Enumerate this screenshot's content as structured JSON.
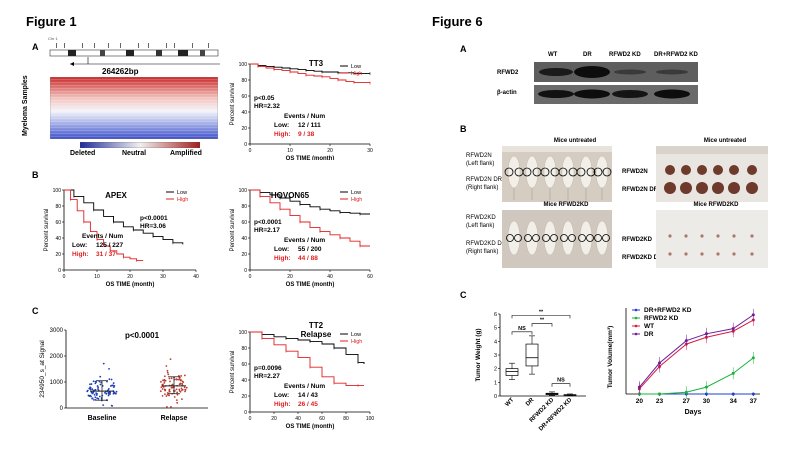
{
  "figure1": {
    "title": "Figure 1",
    "panel_a": {
      "letter": "A",
      "chr_label": "Chr 1",
      "region_size": "264262bp",
      "y_label": "Myeloma Samples",
      "colorbar": {
        "deleted": "Deleted",
        "neutral": "Neutral",
        "amplified": "Amplified"
      }
    },
    "panel_b": {
      "letter": "B"
    },
    "panel_c": {
      "letter": "C"
    }
  },
  "figure6": {
    "title": "Figure 6",
    "panel_a": {
      "letter": "A",
      "columns": [
        "WT",
        "DR",
        "RFWD2 KD",
        "DR+RFWD2 KD"
      ],
      "rows": [
        "RFWD2",
        "β-actin"
      ]
    },
    "panel_b": {
      "letter": "B",
      "top_left_title": "Mice untreated",
      "top_right_title": "Mice untreated",
      "bottom_left_title": "Mice RFWD2KD",
      "bottom_right_title": "Mice RFWD2KD",
      "label_n_left": "RFWD2N",
      "label_n_left_sub": "(Left flank)",
      "label_n_dr": "RFWD2N DR",
      "label_n_dr_sub": "(Right flank)",
      "label_kd_left": "RFWD2KD",
      "label_kd_left_sub": "(Left flank)",
      "label_kd_dr": "RFWD2KD DR",
      "label_kd_dr_sub": "(Right flank)",
      "right_n": "RFWD2N",
      "right_n_dr": "RFWD2N DR",
      "right_kd": "RFWD2KD",
      "right_kd_dr": "RFWD2KD DR"
    },
    "panel_c": {
      "letter": "C"
    }
  },
  "colors": {
    "low": "#000000",
    "high": "#e02020"
  },
  "chart_data": [
    {
      "id": "tt3",
      "type": "line",
      "title": "TT3",
      "xlabel": "OS TIME (month)",
      "ylabel": "Percent survival",
      "xlim": [
        0,
        30
      ],
      "ylim": [
        0,
        100
      ],
      "xticks": [
        "0",
        "10",
        "20",
        "30"
      ],
      "yticks": [
        "0",
        "20",
        "40",
        "60",
        "80",
        "100"
      ],
      "legend": [
        "Low",
        "High"
      ],
      "stats": [
        "p<0.05",
        "HR=2.32"
      ],
      "events_header": "Events / Num",
      "low_label": "Low:",
      "low_val": "12 / 111",
      "high_label": "High:",
      "high_val": "9 / 38",
      "series": [
        {
          "name": "Low",
          "x": [
            0,
            2,
            4,
            6,
            8,
            10,
            12,
            14,
            16,
            18,
            20,
            22,
            24,
            26,
            28,
            30
          ],
          "y": [
            100,
            98,
            97,
            96,
            95,
            94,
            93,
            92,
            91,
            90,
            90,
            89,
            89,
            88,
            88,
            88
          ]
        },
        {
          "name": "High",
          "x": [
            0,
            2,
            4,
            6,
            8,
            10,
            12,
            14,
            16,
            18,
            20,
            22,
            24,
            26,
            28,
            30
          ],
          "y": [
            100,
            97,
            95,
            93,
            92,
            90,
            88,
            86,
            85,
            84,
            82,
            80,
            78,
            77,
            77,
            76
          ]
        }
      ]
    },
    {
      "id": "apex",
      "type": "line",
      "title": "APEX",
      "xlabel": "OS TIME (month)",
      "ylabel": "Percent survival",
      "xlim": [
        0,
        40
      ],
      "ylim": [
        0,
        100
      ],
      "xticks": [
        "0",
        "10",
        "20",
        "30",
        "40"
      ],
      "yticks": [
        "0",
        "20",
        "40",
        "60",
        "80",
        "100"
      ],
      "legend": [
        "Low",
        "High"
      ],
      "stats": [
        "p<0.0001",
        "HR=3.06"
      ],
      "events_header": "Events / Num",
      "low_label": "Low:",
      "low_val": "125 / 227",
      "high_label": "High:",
      "high_val": "31 / 37",
      "series": [
        {
          "name": "Low",
          "x": [
            0,
            3,
            6,
            9,
            12,
            15,
            18,
            21,
            24,
            27,
            30,
            33,
            36
          ],
          "y": [
            100,
            92,
            84,
            75,
            67,
            60,
            54,
            50,
            46,
            42,
            38,
            34,
            32
          ]
        },
        {
          "name": "High",
          "x": [
            0,
            2,
            4,
            6,
            8,
            10,
            12,
            14,
            16,
            18,
            20,
            22,
            24
          ],
          "y": [
            100,
            88,
            74,
            60,
            48,
            38,
            30,
            24,
            20,
            16,
            14,
            12,
            12
          ]
        }
      ]
    },
    {
      "id": "hovon65",
      "type": "line",
      "title": "HOVON65",
      "xlabel": "OS TIME (month)",
      "ylabel": "Percent survival",
      "xlim": [
        0,
        60
      ],
      "ylim": [
        0,
        100
      ],
      "xticks": [
        "0",
        "20",
        "40",
        "60"
      ],
      "yticks": [
        "0",
        "20",
        "40",
        "60",
        "80",
        "100"
      ],
      "legend": [
        "Low",
        "High"
      ],
      "stats": [
        "p<0.0001",
        "HR=2.17"
      ],
      "events_header": "Events / Num",
      "low_label": "Low:",
      "low_val": "55 / 200",
      "high_label": "High:",
      "high_val": "44 / 88",
      "series": [
        {
          "name": "Low",
          "x": [
            0,
            5,
            10,
            15,
            20,
            25,
            30,
            35,
            40,
            45,
            50,
            55,
            60
          ],
          "y": [
            100,
            97,
            94,
            90,
            86,
            82,
            79,
            76,
            74,
            72,
            71,
            70,
            70
          ]
        },
        {
          "name": "High",
          "x": [
            0,
            5,
            10,
            15,
            20,
            25,
            30,
            35,
            40,
            45,
            50,
            55,
            60
          ],
          "y": [
            100,
            92,
            84,
            76,
            68,
            60,
            53,
            48,
            44,
            40,
            36,
            30,
            30
          ]
        }
      ]
    },
    {
      "id": "scatter_c",
      "type": "scatter",
      "ylabel": "234950_s_at Signal",
      "categories": [
        "Baseline",
        "Relapse"
      ],
      "annotation": "p<0.0001",
      "ylim": [
        0,
        3000
      ],
      "yticks": [
        "0",
        "1000",
        "2000",
        "3000"
      ],
      "series": [
        {
          "name": "Baseline",
          "mean": 650,
          "sd_low": 300,
          "sd_high": 1050
        },
        {
          "name": "Relapse",
          "mean": 850,
          "sd_low": 550,
          "sd_high": 1200
        }
      ]
    },
    {
      "id": "tt2",
      "type": "line",
      "title": "TT2",
      "subtitle": "Relapse",
      "xlabel": "OS TIME (month)",
      "ylabel": "Percent survival",
      "xlim": [
        0,
        100
      ],
      "ylim": [
        0,
        100
      ],
      "xticks": [
        "0",
        "20",
        "40",
        "60",
        "80",
        "100"
      ],
      "yticks": [
        "0",
        "20",
        "40",
        "60",
        "80",
        "100"
      ],
      "legend": [
        "Low",
        "High"
      ],
      "stats": [
        "p=0.0096",
        "HR=2.27"
      ],
      "events_header": "Events / Num",
      "low_label": "Low:",
      "low_val": "14 / 43",
      "high_label": "High:",
      "high_val": "26 / 45",
      "series": [
        {
          "name": "Low",
          "x": [
            0,
            10,
            20,
            30,
            40,
            50,
            60,
            70,
            80,
            90,
            95
          ],
          "y": [
            100,
            97,
            94,
            92,
            90,
            88,
            85,
            80,
            72,
            62,
            60
          ]
        },
        {
          "name": "High",
          "x": [
            0,
            10,
            20,
            30,
            40,
            50,
            60,
            70,
            80,
            90,
            95
          ],
          "y": [
            100,
            92,
            84,
            76,
            68,
            56,
            44,
            36,
            33,
            33,
            33
          ]
        }
      ]
    },
    {
      "id": "box_weight",
      "type": "bar",
      "ylabel": "Tumor Weight (g)",
      "categories": [
        "WT",
        "DR",
        "RFWD2 KD",
        "DR+RFWD2 KD"
      ],
      "ylim": [
        0,
        6
      ],
      "yticks": [
        "0",
        "1",
        "2",
        "3",
        "4",
        "5",
        "6"
      ],
      "significance": [
        "NS",
        "**",
        "**",
        "NS"
      ],
      "series": [
        {
          "name": "WT",
          "min": 1.2,
          "q1": 1.5,
          "median": 1.8,
          "q3": 2.0,
          "max": 2.4
        },
        {
          "name": "DR",
          "min": 1.6,
          "q1": 2.2,
          "median": 2.8,
          "q3": 3.8,
          "max": 4.4
        },
        {
          "name": "RFWD2 KD",
          "min": 0.05,
          "q1": 0.1,
          "median": 0.15,
          "q3": 0.2,
          "max": 0.3
        },
        {
          "name": "DR+RFWD2 KD",
          "min": 0.02,
          "q1": 0.05,
          "median": 0.08,
          "q3": 0.1,
          "max": 0.15
        }
      ]
    },
    {
      "id": "tumor_volume",
      "type": "line",
      "xlabel": "Days",
      "ylabel": "Tumor Volume(mm³)",
      "x": [
        20,
        23,
        27,
        30,
        34,
        37
      ],
      "xticks": [
        "20",
        "23",
        "27",
        "30",
        "34",
        "37"
      ],
      "ylim": [
        0,
        1000
      ],
      "legend": [
        "DR+RFWD2 KD",
        "RFWD2 KD",
        "WT",
        "DR"
      ],
      "series": [
        {
          "name": "DR+RFWD2 KD",
          "color": "#1f3fd6",
          "y": [
            0,
            0,
            0,
            0,
            0,
            0
          ]
        },
        {
          "name": "RFWD2 KD",
          "color": "#19b33a",
          "y": [
            0,
            0,
            20,
            80,
            240,
            420
          ]
        },
        {
          "name": "WT",
          "color": "#d81b45",
          "y": [
            60,
            320,
            580,
            660,
            730,
            860
          ]
        },
        {
          "name": "DR",
          "color": "#6d1c9a",
          "y": [
            80,
            360,
            620,
            700,
            760,
            920
          ]
        }
      ]
    }
  ]
}
